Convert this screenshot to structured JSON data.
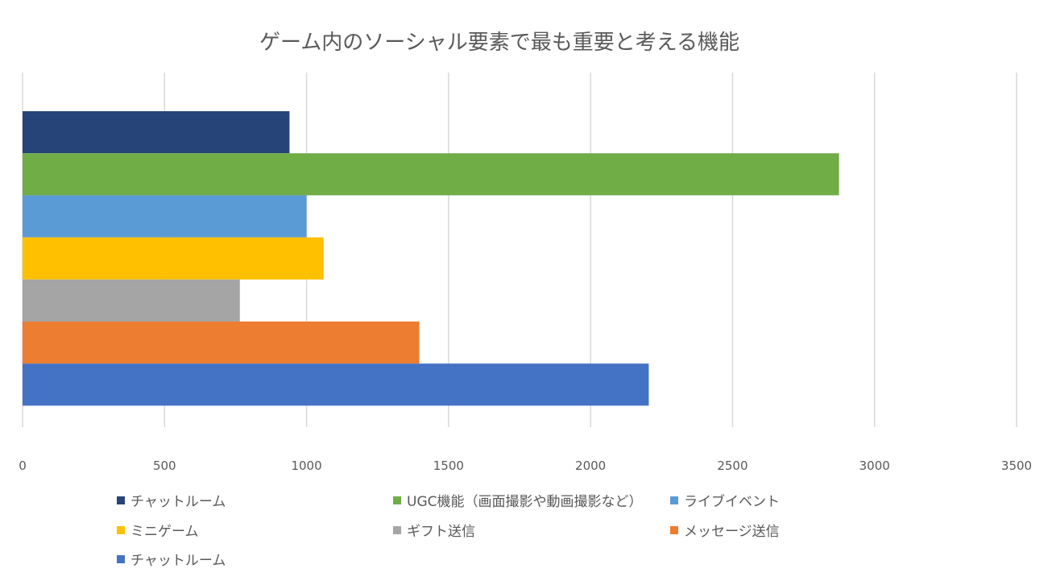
{
  "chart_data": {
    "type": "bar",
    "orientation": "horizontal",
    "title": "ゲーム内のソーシャル要素で最も重要と考える機能",
    "xlabel": "",
    "ylabel": "",
    "xlim": [
      0,
      3500
    ],
    "x_ticks": [
      "0",
      "500",
      "1000",
      "1500",
      "2000",
      "2500",
      "3000",
      "3500"
    ],
    "grid": true,
    "legend_position": "bottom",
    "series": [
      {
        "name": "チャットルーム",
        "value": 940,
        "color": "#264478"
      },
      {
        "name": "UGC機能（画面撮影や動画撮影など）",
        "value": 2875,
        "color": "#70AD47"
      },
      {
        "name": "ライブイベント",
        "value": 1000,
        "color": "#5B9BD5"
      },
      {
        "name": "ミニゲーム",
        "value": 1060,
        "color": "#FFC000"
      },
      {
        "name": "ギフト送信",
        "value": 765,
        "color": "#A5A5A5"
      },
      {
        "name": "メッセージ送信",
        "value": 1397,
        "color": "#ED7D31"
      },
      {
        "name": "チャットルーム",
        "value": 2205,
        "color": "#4472C4"
      }
    ]
  }
}
